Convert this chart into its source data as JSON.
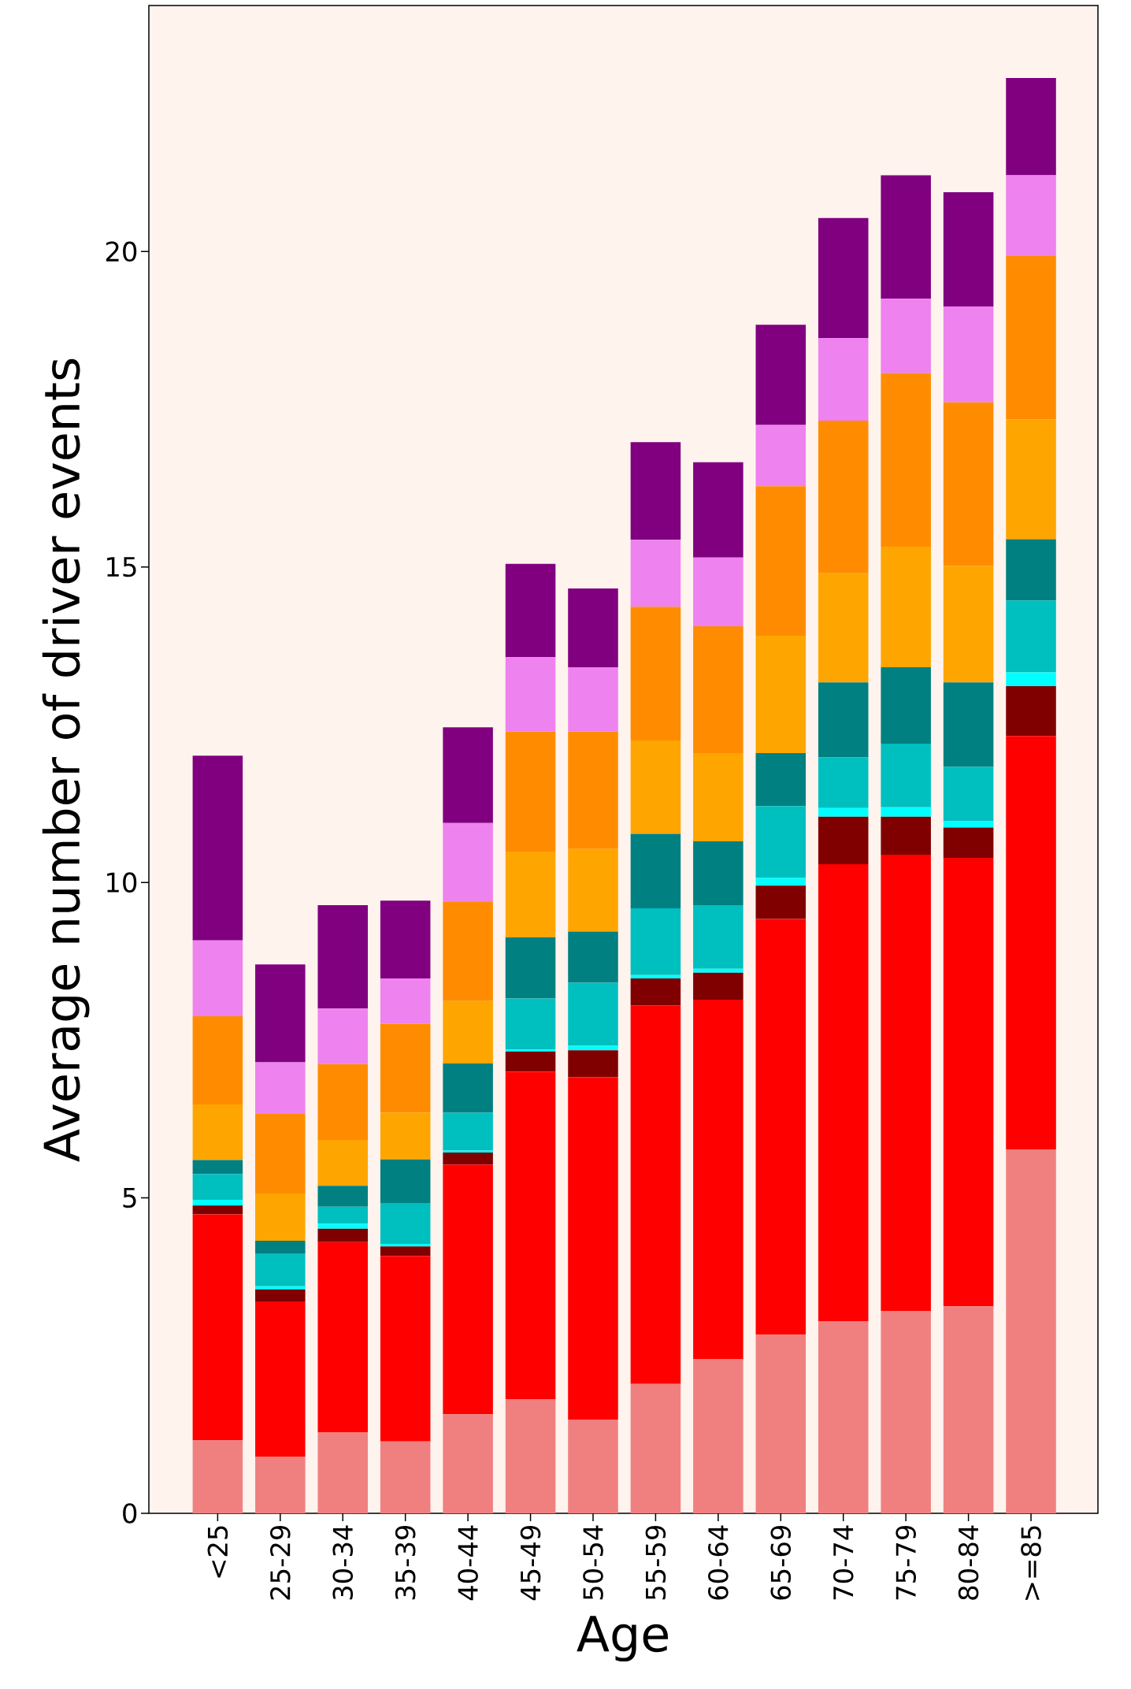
{
  "chart_data": {
    "type": "bar",
    "stacked": true,
    "xlabel": "Age",
    "ylabel": "Average number of driver events",
    "categories": [
      "<25",
      "25-29",
      "30-34",
      "35-39",
      "40-44",
      "45-49",
      "50-54",
      "55-59",
      "60-64",
      "65-69",
      "70-74",
      "75-79",
      "80-84",
      ">=85"
    ],
    "ylim": [
      0,
      23.9
    ],
    "yticks": [
      0,
      5,
      10,
      15,
      20
    ],
    "grid": false,
    "series": [
      {
        "color": "#f08080",
        "values": [
          1.16,
          0.9,
          1.28,
          1.14,
          1.57,
          1.81,
          1.48,
          2.05,
          2.44,
          2.83,
          3.04,
          3.21,
          3.28,
          5.77
        ]
      },
      {
        "color": "#ff0000",
        "values": [
          3.58,
          2.46,
          3.02,
          2.94,
          3.96,
          5.19,
          5.43,
          6.0,
          5.7,
          6.59,
          7.25,
          7.23,
          7.11,
          6.55
        ]
      },
      {
        "color": "#800000",
        "values": [
          0.14,
          0.19,
          0.21,
          0.15,
          0.19,
          0.32,
          0.43,
          0.43,
          0.43,
          0.53,
          0.75,
          0.6,
          0.48,
          0.79
        ]
      },
      {
        "color": "#00ffff",
        "values": [
          0.09,
          0.05,
          0.08,
          0.04,
          0.03,
          0.03,
          0.07,
          0.05,
          0.06,
          0.12,
          0.14,
          0.15,
          0.1,
          0.22
        ]
      },
      {
        "color": "#00bfbf",
        "values": [
          0.41,
          0.51,
          0.27,
          0.64,
          0.6,
          0.81,
          1.0,
          1.06,
          1.01,
          1.14,
          0.8,
          1.01,
          0.86,
          1.14
        ]
      },
      {
        "color": "#008080",
        "values": [
          0.22,
          0.21,
          0.33,
          0.7,
          0.78,
          0.97,
          0.81,
          1.18,
          1.01,
          0.84,
          1.19,
          1.21,
          1.34,
          0.97
        ]
      },
      {
        "color": "#ffa500",
        "values": [
          0.88,
          0.75,
          0.73,
          0.74,
          0.99,
          1.36,
          1.31,
          1.48,
          1.4,
          1.86,
          1.73,
          1.91,
          1.85,
          1.9
        ]
      },
      {
        "color": "#ff8c00",
        "values": [
          1.4,
          1.26,
          1.2,
          1.41,
          1.57,
          1.9,
          1.86,
          2.12,
          2.01,
          2.37,
          2.42,
          2.75,
          2.59,
          2.59
        ]
      },
      {
        "color": "#ee82ee",
        "values": [
          1.2,
          0.82,
          0.88,
          0.72,
          1.25,
          1.18,
          1.02,
          1.06,
          1.09,
          0.97,
          1.31,
          1.18,
          1.52,
          1.28
        ]
      },
      {
        "color": "#800080",
        "values": [
          2.93,
          1.55,
          1.64,
          1.23,
          1.52,
          1.48,
          1.25,
          1.55,
          1.51,
          1.59,
          1.9,
          1.96,
          1.81,
          1.54
        ]
      }
    ]
  }
}
